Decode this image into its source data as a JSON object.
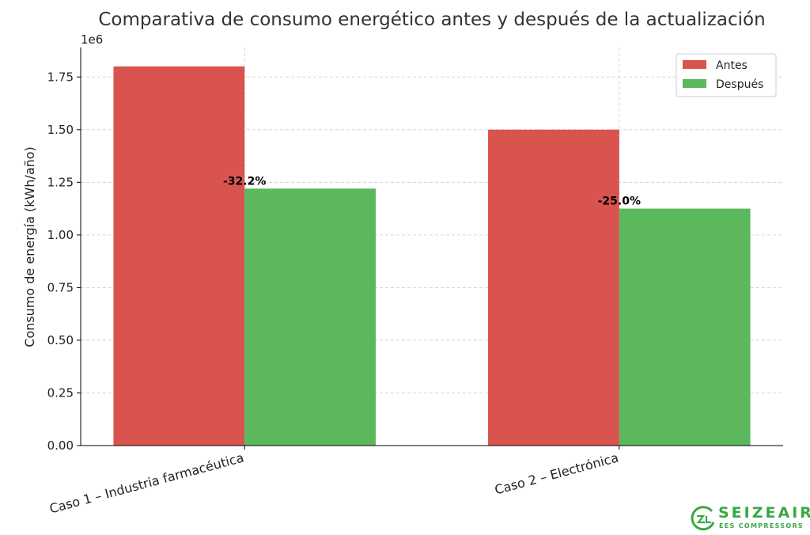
{
  "chart_data": {
    "type": "bar",
    "title": "Comparativa de consumo energético antes y después de la actualización",
    "xlabel": "",
    "ylabel": "Consumo de energía (kWh/año)",
    "y_offset_label": "1e6",
    "categories": [
      "Caso 1 – Industria farmacéutica",
      "Caso 2 – Electrónica"
    ],
    "series": [
      {
        "name": "Antes",
        "color": "#d9534f",
        "values": [
          1800000,
          1500000
        ]
      },
      {
        "name": "Después",
        "color": "#5cb85c",
        "values": [
          1220000,
          1125000
        ]
      }
    ],
    "annotations": [
      "-32.2%",
      "-25.0%"
    ],
    "yticks": [
      0,
      250000,
      500000,
      750000,
      1000000,
      1250000,
      1500000,
      1750000
    ],
    "ytick_labels": [
      "0.00",
      "0.25",
      "0.50",
      "0.75",
      "1.00",
      "1.25",
      "1.50",
      "1.75"
    ],
    "ylim": [
      0,
      1890000
    ],
    "xlim": [
      -0.4375,
      1.4375
    ],
    "grid": true,
    "legend_position": "top-right"
  },
  "logo": {
    "name": "SEIZEAIR",
    "registered": "®",
    "tagline": "EES COMPRESSORS"
  }
}
